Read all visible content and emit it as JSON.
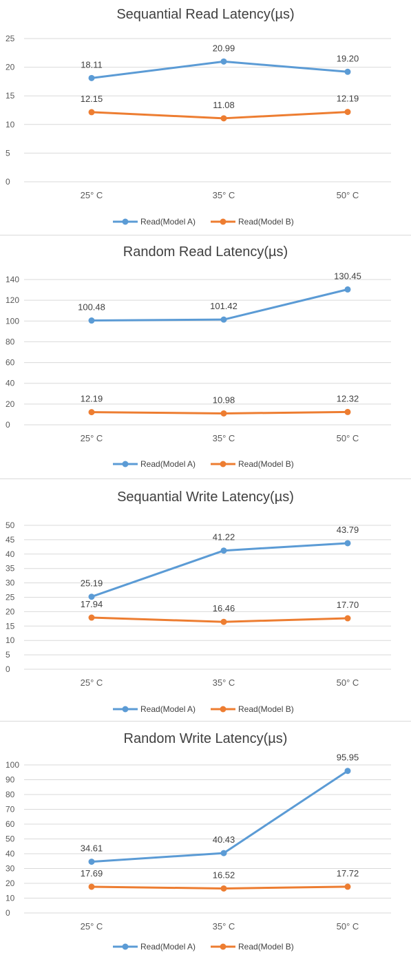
{
  "chart_data": [
    {
      "type": "line",
      "title": "Sequantial Read Latency(µs)",
      "categories": [
        "25° C",
        "35° C",
        "50° C"
      ],
      "ylim": [
        0,
        25
      ],
      "yticks": [
        0,
        5,
        10,
        15,
        20,
        25
      ],
      "ytick_labels": [
        "0",
        "5",
        "10",
        "15",
        "20",
        "25"
      ],
      "grid": true,
      "legend": "bottom",
      "series": [
        {
          "name": "Read(Model A)",
          "values": [
            18.11,
            20.99,
            19.2
          ],
          "labels": [
            "18.11",
            "20.99",
            "19.20"
          ],
          "color": "#5b9bd5"
        },
        {
          "name": "Read(Model B)",
          "values": [
            12.15,
            11.08,
            12.19
          ],
          "labels": [
            "12.15",
            "11.08",
            "12.19"
          ],
          "color": "#ed7d31"
        }
      ]
    },
    {
      "type": "line",
      "title": "Random Read Latency(µs)",
      "categories": [
        "25° C",
        "35° C",
        "50° C"
      ],
      "ylim": [
        0,
        140
      ],
      "yticks": [
        0,
        20,
        40,
        60,
        80,
        100,
        120,
        140
      ],
      "ytick_labels": [
        "0",
        "20",
        "40",
        "60",
        "80",
        "100",
        "120",
        "140"
      ],
      "grid": true,
      "legend": "bottom",
      "series": [
        {
          "name": "Read(Model A)",
          "values": [
            100.48,
            101.42,
            130.45
          ],
          "labels": [
            "100.48",
            "101.42",
            "130.45"
          ],
          "color": "#5b9bd5"
        },
        {
          "name": "Read(Model B)",
          "values": [
            12.19,
            10.98,
            12.32
          ],
          "labels": [
            "12.19",
            "10.98",
            "12.32"
          ],
          "color": "#ed7d31"
        }
      ]
    },
    {
      "type": "line",
      "title": "Sequantial Write Latency(µs)",
      "categories": [
        "25° C",
        "35° C",
        "50° C"
      ],
      "ylim": [
        0,
        50
      ],
      "yticks": [
        0,
        5,
        10,
        15,
        20,
        25,
        30,
        35,
        40,
        45,
        50
      ],
      "ytick_labels": [
        "0",
        "5",
        "10",
        "15",
        "20",
        "25",
        "30",
        "35",
        "40",
        "45",
        "50"
      ],
      "grid": true,
      "legend": "bottom",
      "series": [
        {
          "name": "Read(Model A)",
          "values": [
            25.19,
            41.22,
            43.79
          ],
          "labels": [
            "25.19",
            "41.22",
            "43.79"
          ],
          "color": "#5b9bd5"
        },
        {
          "name": "Read(Model B)",
          "values": [
            17.94,
            16.46,
            17.7
          ],
          "labels": [
            "17.94",
            "16.46",
            "17.70"
          ],
          "color": "#ed7d31"
        }
      ]
    },
    {
      "type": "line",
      "title": "Random Write Latency(µs)",
      "categories": [
        "25° C",
        "35° C",
        "50° C"
      ],
      "ylim": [
        0,
        100
      ],
      "yticks": [
        0,
        10,
        20,
        30,
        40,
        50,
        60,
        70,
        80,
        90,
        100
      ],
      "ytick_labels": [
        "0",
        "10",
        "20",
        "30",
        "40",
        "50",
        "60",
        "70",
        "80",
        "90",
        "100"
      ],
      "grid": true,
      "legend": "bottom",
      "series": [
        {
          "name": "Read(Model A)",
          "values": [
            34.61,
            40.43,
            95.95
          ],
          "labels": [
            "34.61",
            "40.43",
            "95.95"
          ],
          "color": "#5b9bd5"
        },
        {
          "name": "Read(Model B)",
          "values": [
            17.69,
            16.52,
            17.72
          ],
          "labels": [
            "17.69",
            "16.52",
            "17.72"
          ],
          "color": "#ed7d31"
        }
      ]
    }
  ]
}
